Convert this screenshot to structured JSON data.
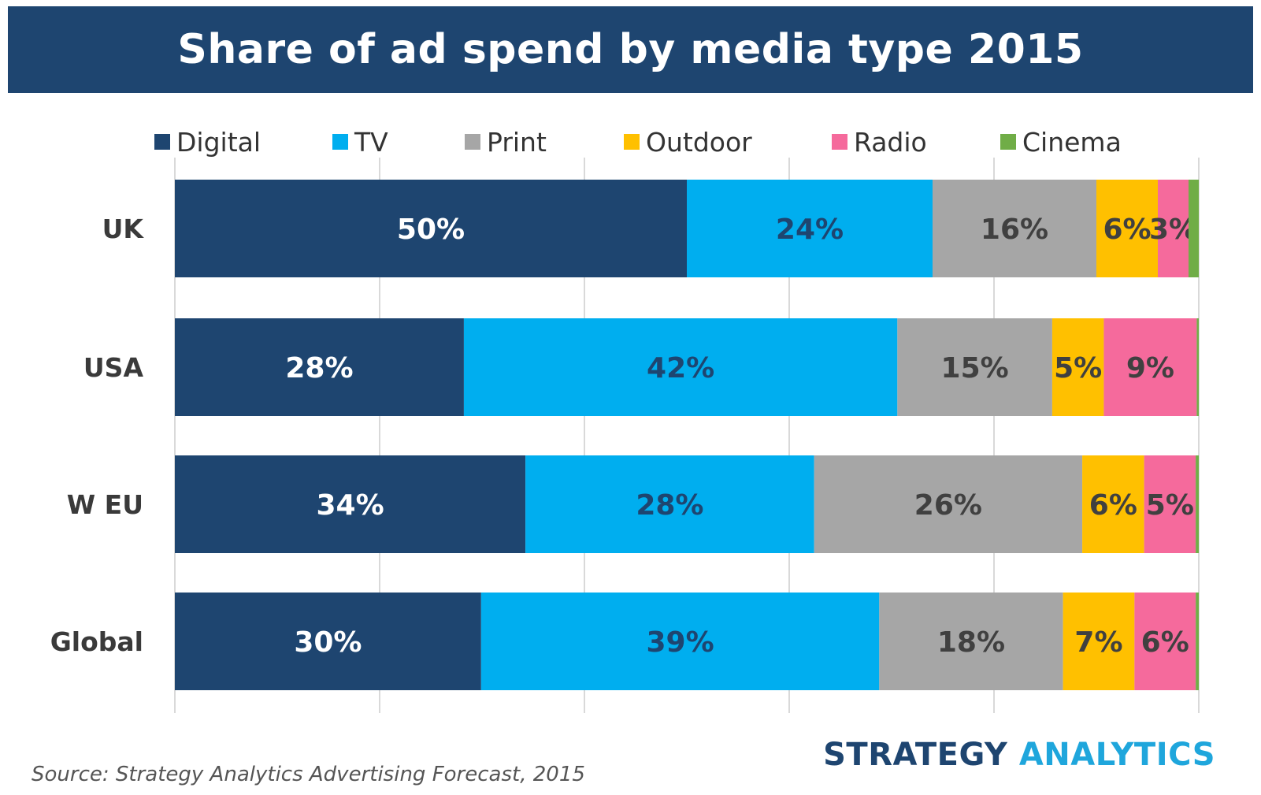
{
  "title": "Share of ad spend by media type 2015",
  "chart_data": {
    "type": "bar",
    "orientation": "horizontal",
    "stacked": true,
    "categories": [
      "UK",
      "USA",
      "W EU",
      "Global"
    ],
    "series": [
      {
        "name": "Digital",
        "color": "#1e4570",
        "label_color": "#ffffff",
        "values": [
          50,
          28,
          34,
          30
        ],
        "labels": [
          "50%",
          "28%",
          "34%",
          "30%"
        ]
      },
      {
        "name": "TV",
        "color": "#00aeef",
        "label_color": "#1e4570",
        "values": [
          24,
          42,
          28,
          39
        ],
        "labels": [
          "24%",
          "42%",
          "28%",
          "39%"
        ]
      },
      {
        "name": "Print",
        "color": "#a6a6a6",
        "label_color": "#404040",
        "values": [
          16,
          15,
          26,
          18
        ],
        "labels": [
          "16%",
          "15%",
          "26%",
          "18%"
        ]
      },
      {
        "name": "Outdoor",
        "color": "#ffc000",
        "label_color": "#404040",
        "values": [
          6,
          5,
          6,
          7
        ],
        "labels": [
          "6%",
          "5%",
          "6%",
          "7%"
        ]
      },
      {
        "name": "Radio",
        "color": "#f56a9c",
        "label_color": "#404040",
        "values": [
          3,
          9,
          5,
          6
        ],
        "labels": [
          "3%",
          "9%",
          "5%",
          "6%"
        ]
      },
      {
        "name": "Cinema",
        "color": "#70ad47",
        "label_color": "#404040",
        "values": [
          1,
          0.2,
          0.3,
          0.3
        ],
        "labels": [
          "",
          "",
          "",
          ""
        ]
      }
    ],
    "xlim": [
      0,
      100
    ],
    "grid": true,
    "legend": "top"
  },
  "source": "Source: Strategy Analytics Advertising Forecast, 2015",
  "brand": {
    "part1": "STRATEGY ",
    "part2": "ANALYTICS"
  }
}
